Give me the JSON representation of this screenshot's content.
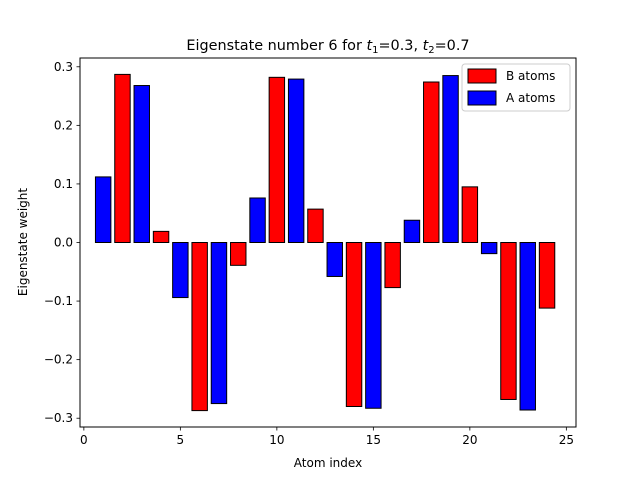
{
  "chart_data": {
    "type": "bar",
    "title_main": "Eigenstate number 6 for ",
    "title_t1_sym": "t",
    "title_t1_sub": "1",
    "title_t1_val": "=0.3, ",
    "title_t2_sym": "t",
    "title_t2_sub": "2",
    "title_t2_val": "=0.7",
    "xlabel": "Atom index",
    "ylabel": "Eigenstate weight",
    "xlim": [
      -0.2,
      25.5
    ],
    "ylim": [
      -0.315,
      0.315
    ],
    "xticks": [
      0,
      5,
      10,
      15,
      20,
      25
    ],
    "xtick_labels": [
      "0",
      "5",
      "10",
      "15",
      "20",
      "25"
    ],
    "yticks": [
      -0.3,
      -0.2,
      -0.1,
      0.0,
      0.1,
      0.2,
      0.3
    ],
    "ytick_labels": [
      "−0.3",
      "−0.2",
      "−0.1",
      "0.0",
      "0.1",
      "0.2",
      "0.3"
    ],
    "grid": false,
    "legend_position": "top-right",
    "series": [
      {
        "name": "B atoms",
        "color": "#ff0000",
        "x": [
          2,
          4,
          6,
          8,
          10,
          12,
          14,
          16,
          18,
          20,
          22,
          24
        ],
        "values": [
          0.287,
          0.019,
          -0.287,
          -0.039,
          0.282,
          0.057,
          -0.28,
          -0.077,
          0.274,
          0.095,
          -0.268,
          -0.112
        ]
      },
      {
        "name": "A atoms",
        "color": "#0000ff",
        "x": [
          1,
          3,
          5,
          7,
          9,
          11,
          13,
          15,
          17,
          19,
          21,
          23
        ],
        "values": [
          0.112,
          0.268,
          -0.094,
          -0.275,
          0.076,
          0.279,
          -0.058,
          -0.283,
          0.038,
          0.285,
          -0.019,
          -0.286
        ]
      }
    ]
  }
}
